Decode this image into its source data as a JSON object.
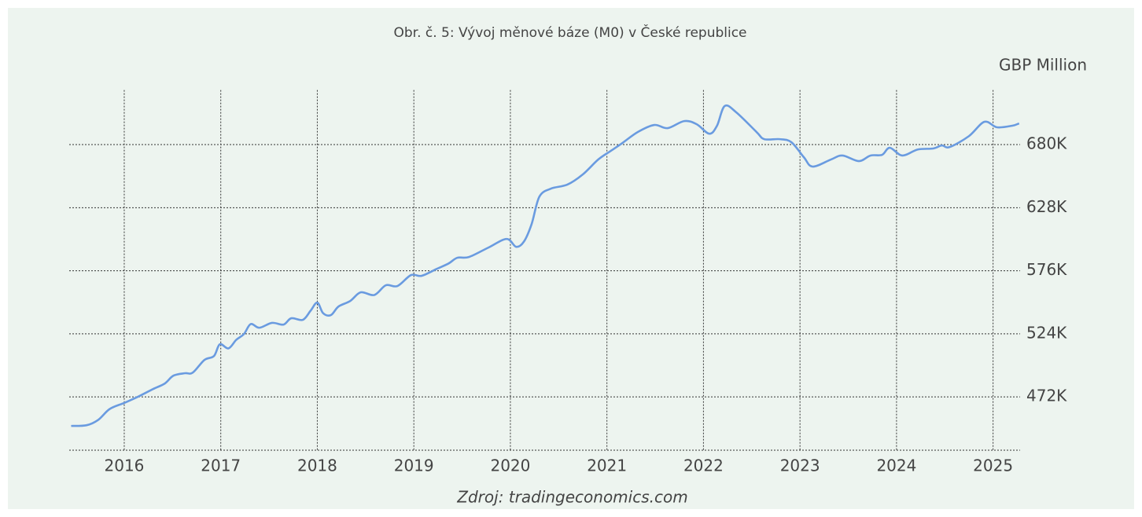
{
  "chart_data": {
    "type": "line",
    "title": "Obr. č. 5: Vývoj měnové báze (M0) v České republice",
    "y_axis_label": "GBP Million",
    "source": "Zdroj: tradingeconomics.com",
    "xlim": [
      2015.43,
      2025.28
    ],
    "xticks": [
      2016,
      2017,
      2018,
      2019,
      2020,
      2021,
      2022,
      2023,
      2024,
      2025
    ],
    "ylim": [
      428000,
      725000
    ],
    "yticks": [
      {
        "value": 472000,
        "label": "472K"
      },
      {
        "value": 524000,
        "label": "524K"
      },
      {
        "value": 576000,
        "label": "576K"
      },
      {
        "value": 628000,
        "label": "628K"
      },
      {
        "value": 680000,
        "label": "680K"
      }
    ],
    "grid": true,
    "series": [
      {
        "color": "#6a9be0",
        "x": [
          2015.45,
          2015.61,
          2015.73,
          2015.85,
          2016.0,
          2016.14,
          2016.3,
          2016.42,
          2016.51,
          2016.63,
          2016.71,
          2016.83,
          2016.93,
          2016.99,
          2017.08,
          2017.16,
          2017.24,
          2017.31,
          2017.4,
          2017.53,
          2017.65,
          2017.73,
          2017.85,
          2017.93,
          2018.0,
          2018.06,
          2018.14,
          2018.22,
          2018.34,
          2018.45,
          2018.59,
          2018.71,
          2018.83,
          2018.97,
          2019.08,
          2019.24,
          2019.36,
          2019.45,
          2019.57,
          2019.77,
          2019.96,
          2020.06,
          2020.14,
          2020.22,
          2020.3,
          2020.42,
          2020.59,
          2020.75,
          2020.91,
          2021.04,
          2021.16,
          2021.32,
          2021.49,
          2021.63,
          2021.8,
          2021.93,
          2022.06,
          2022.14,
          2022.22,
          2022.34,
          2022.55,
          2022.63,
          2022.79,
          2022.91,
          2023.04,
          2023.13,
          2023.32,
          2023.44,
          2023.61,
          2023.73,
          2023.85,
          2023.93,
          2024.06,
          2024.22,
          2024.38,
          2024.47,
          2024.55,
          2024.75,
          2024.91,
          2025.04,
          2025.2,
          2025.27
        ],
        "values": [
          448000,
          448600,
          453000,
          462000,
          467000,
          472000,
          478500,
          483000,
          489500,
          491500,
          492000,
          502400,
          505700,
          515400,
          512000,
          519000,
          523800,
          532000,
          529000,
          533000,
          531600,
          536800,
          535500,
          543000,
          549700,
          541000,
          539400,
          546500,
          551000,
          558200,
          556000,
          564000,
          563400,
          572400,
          571800,
          577600,
          582000,
          586700,
          587300,
          595000,
          602200,
          595700,
          600000,
          614500,
          637000,
          643700,
          647000,
          655400,
          667700,
          674800,
          681300,
          690400,
          696200,
          693600,
          699400,
          696800,
          689000,
          695500,
          711800,
          706600,
          690400,
          684500,
          684500,
          682000,
          669600,
          661900,
          667700,
          671000,
          666400,
          671000,
          671600,
          677400,
          671000,
          676000,
          676800,
          679300,
          678000,
          687000,
          698800,
          694300,
          695600,
          697500
        ]
      }
    ]
  }
}
